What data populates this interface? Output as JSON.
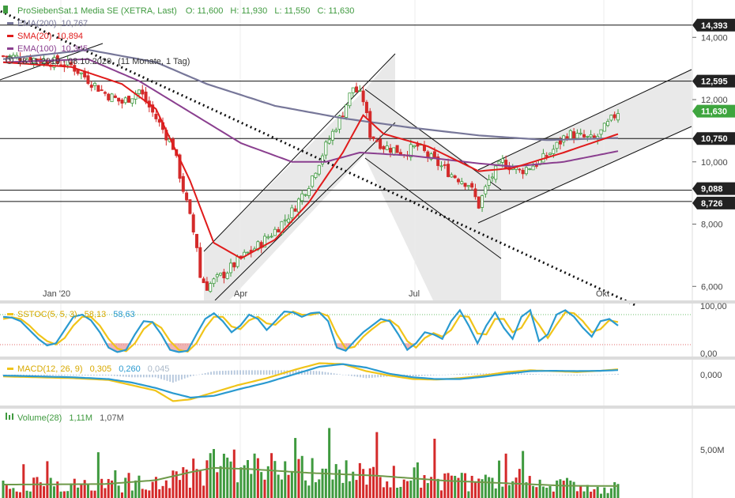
{
  "colors": {
    "up": "#3f9a3f",
    "down": "#d42a2a",
    "ema200": "#777799",
    "sma20": "#e01b1b",
    "ema100": "#8a3f8f",
    "stoch_k": "#2a9ad0",
    "stoch_d": "#f0c419",
    "tag_bg": "#222222",
    "last_tag": "#3ea53e",
    "volume_ma": "#6e9a4a",
    "channel": "#e9e9e9"
  },
  "header": {
    "symbol": "ProSiebenSat.1 Media SE (XETRA, Last)",
    "open": "O: 11,600",
    "high": "H: 11,930",
    "low": "L: 11,550",
    "close": "C: 11,630"
  },
  "legend": [
    {
      "key": "ema200",
      "label": "EMA(200)",
      "value": "10,767"
    },
    {
      "key": "sma20",
      "label": "SMA(20)",
      "value": "10,894"
    },
    {
      "key": "ema100",
      "label": "EMA(100)",
      "value": "10,345"
    }
  ],
  "period": {
    "range": "28.11.2019 - 08.10.2020",
    "length": "(11 Monate, 1 Tag)"
  },
  "chart_data": [
    {
      "type": "candlestick",
      "x_labels": [
        "Jan '20",
        "Apr",
        "Jul",
        "Okt"
      ],
      "y_ticks": [
        "14,000",
        "12,000",
        "10,000",
        "8,000",
        "6,000"
      ],
      "y_tick_values": [
        14,
        12,
        10,
        8,
        6
      ],
      "ylim": [
        5.55,
        15.2
      ],
      "price_tags": [
        {
          "label": "14,393",
          "value": 14.393
        },
        {
          "label": "12,595",
          "value": 12.595
        },
        {
          "label": "11,630",
          "value": 11.63,
          "last": true
        },
        {
          "label": "10,750",
          "value": 10.75
        },
        {
          "label": "9,088",
          "value": 9.088
        },
        {
          "label": "8,726",
          "value": 8.726
        }
      ],
      "horizontal_lines": [
        14.393,
        12.595,
        10.75,
        9.088,
        8.726
      ],
      "close_anchors": [
        [
          0,
          13.4
        ],
        [
          10,
          13.3
        ],
        [
          20,
          13.1
        ],
        [
          30,
          12.2
        ],
        [
          35,
          11.9
        ],
        [
          40,
          12.3
        ],
        [
          45,
          11.4
        ],
        [
          50,
          10.5
        ],
        [
          55,
          8.2
        ],
        [
          57,
          7.3
        ],
        [
          58,
          6.3
        ],
        [
          60,
          6.0
        ],
        [
          65,
          6.4
        ],
        [
          70,
          6.9
        ],
        [
          75,
          7.3
        ],
        [
          80,
          7.8
        ],
        [
          85,
          8.4
        ],
        [
          90,
          9.3
        ],
        [
          95,
          10.5
        ],
        [
          100,
          11.6
        ],
        [
          103,
          12.4
        ],
        [
          106,
          12.0
        ],
        [
          108,
          10.9
        ],
        [
          112,
          10.5
        ],
        [
          118,
          10.3
        ],
        [
          122,
          10.5
        ],
        [
          126,
          10.1
        ],
        [
          132,
          9.6
        ],
        [
          137,
          9.3
        ],
        [
          140,
          8.6
        ],
        [
          143,
          9.4
        ],
        [
          147,
          10.0
        ],
        [
          152,
          9.7
        ],
        [
          158,
          10.0
        ],
        [
          162,
          10.4
        ],
        [
          166,
          10.9
        ],
        [
          170,
          10.8
        ],
        [
          174,
          10.7
        ],
        [
          178,
          11.2
        ],
        [
          181,
          11.63
        ]
      ],
      "sma20_anchors": [
        [
          0,
          13.2
        ],
        [
          20,
          13.05
        ],
        [
          35,
          12.5
        ],
        [
          45,
          11.7
        ],
        [
          55,
          9.4
        ],
        [
          62,
          7.4
        ],
        [
          70,
          6.9
        ],
        [
          80,
          7.5
        ],
        [
          90,
          8.7
        ],
        [
          100,
          10.3
        ],
        [
          106,
          11.5
        ],
        [
          112,
          10.9
        ],
        [
          125,
          10.5
        ],
        [
          140,
          9.7
        ],
        [
          150,
          9.8
        ],
        [
          165,
          10.3
        ],
        [
          181,
          10.894
        ]
      ],
      "ema200_anchors": [
        [
          0,
          13.3
        ],
        [
          25,
          13.6
        ],
        [
          45,
          13.2
        ],
        [
          60,
          12.5
        ],
        [
          80,
          11.8
        ],
        [
          100,
          11.4
        ],
        [
          120,
          11.1
        ],
        [
          140,
          10.85
        ],
        [
          160,
          10.7
        ],
        [
          181,
          10.767
        ]
      ],
      "ema100_anchors": [
        [
          0,
          13.2
        ],
        [
          25,
          13.3
        ],
        [
          40,
          12.6
        ],
        [
          55,
          11.6
        ],
        [
          70,
          10.6
        ],
        [
          85,
          10.0
        ],
        [
          95,
          10.0
        ],
        [
          105,
          10.3
        ],
        [
          120,
          10.2
        ],
        [
          140,
          9.95
        ],
        [
          150,
          9.85
        ],
        [
          165,
          10.0
        ],
        [
          181,
          10.345
        ]
      ],
      "trendline": [
        [
          -2,
          14.9
        ],
        [
          186,
          5.4
        ]
      ]
    },
    {
      "type": "line",
      "name": "SSTOC(5, 5, 3)",
      "values_text": [
        "58,13",
        "58,63"
      ],
      "y_ticks": [
        "100,00",
        "0,00"
      ],
      "ylim": [
        -10,
        110
      ],
      "k_anchors": [
        [
          0,
          80
        ],
        [
          3,
          78
        ],
        [
          6,
          70
        ],
        [
          9,
          50
        ],
        [
          12,
          30
        ],
        [
          15,
          15
        ],
        [
          18,
          20
        ],
        [
          21,
          50
        ],
        [
          24,
          80
        ],
        [
          27,
          85
        ],
        [
          30,
          72
        ],
        [
          33,
          45
        ],
        [
          36,
          10
        ],
        [
          39,
          0
        ],
        [
          42,
          5
        ],
        [
          45,
          40
        ],
        [
          48,
          70
        ],
        [
          51,
          68
        ],
        [
          54,
          40
        ],
        [
          57,
          5
        ],
        [
          60,
          0
        ],
        [
          63,
          3
        ],
        [
          66,
          40
        ],
        [
          69,
          75
        ],
        [
          72,
          88
        ],
        [
          75,
          70
        ],
        [
          78,
          45
        ],
        [
          81,
          60
        ],
        [
          84,
          85
        ],
        [
          87,
          75
        ],
        [
          90,
          50
        ],
        [
          93,
          70
        ],
        [
          96,
          92
        ],
        [
          99,
          90
        ],
        [
          102,
          80
        ],
        [
          105,
          88
        ],
        [
          108,
          90
        ],
        [
          111,
          70
        ],
        [
          114,
          10
        ],
        [
          117,
          3
        ],
        [
          120,
          25
        ],
        [
          123,
          45
        ],
        [
          126,
          60
        ],
        [
          129,
          75
        ],
        [
          132,
          70
        ],
        [
          135,
          40
        ],
        [
          138,
          5
        ],
        [
          141,
          20
        ],
        [
          144,
          45
        ],
        [
          147,
          40
        ],
        [
          150,
          30
        ],
        [
          153,
          70
        ],
        [
          156,
          95
        ],
        [
          159,
          60
        ],
        [
          162,
          20
        ],
        [
          165,
          60
        ],
        [
          168,
          90
        ],
        [
          171,
          55
        ],
        [
          174,
          30
        ],
        [
          177,
          80
        ],
        [
          180,
          95
        ],
        [
          183,
          25
        ],
        [
          186,
          40
        ],
        [
          189,
          85
        ],
        [
          192,
          95
        ],
        [
          195,
          80
        ],
        [
          198,
          55
        ],
        [
          201,
          35
        ],
        [
          204,
          70
        ],
        [
          207,
          75
        ],
        [
          210,
          60
        ]
      ],
      "d_anchors": [
        [
          0,
          75
        ],
        [
          3,
          79
        ],
        [
          6,
          75
        ],
        [
          9,
          60
        ],
        [
          12,
          40
        ],
        [
          15,
          25
        ],
        [
          18,
          17
        ],
        [
          21,
          32
        ],
        [
          24,
          60
        ],
        [
          27,
          80
        ],
        [
          30,
          80
        ],
        [
          33,
          60
        ],
        [
          36,
          30
        ],
        [
          39,
          8
        ],
        [
          42,
          2
        ],
        [
          45,
          20
        ],
        [
          48,
          52
        ],
        [
          51,
          68
        ],
        [
          54,
          55
        ],
        [
          57,
          25
        ],
        [
          60,
          5
        ],
        [
          63,
          1
        ],
        [
          66,
          20
        ],
        [
          69,
          55
        ],
        [
          72,
          80
        ],
        [
          75,
          80
        ],
        [
          78,
          58
        ],
        [
          81,
          52
        ],
        [
          84,
          72
        ],
        [
          87,
          80
        ],
        [
          90,
          65
        ],
        [
          93,
          62
        ],
        [
          96,
          80
        ],
        [
          99,
          92
        ],
        [
          102,
          85
        ],
        [
          105,
          84
        ],
        [
          108,
          89
        ],
        [
          111,
          82
        ],
        [
          114,
          40
        ],
        [
          117,
          8
        ],
        [
          120,
          12
        ],
        [
          123,
          35
        ],
        [
          126,
          52
        ],
        [
          129,
          67
        ],
        [
          132,
          73
        ],
        [
          135,
          58
        ],
        [
          138,
          25
        ],
        [
          141,
          10
        ],
        [
          144,
          32
        ],
        [
          147,
          43
        ],
        [
          150,
          35
        ],
        [
          153,
          50
        ],
        [
          156,
          82
        ],
        [
          159,
          80
        ],
        [
          162,
          42
        ],
        [
          165,
          40
        ],
        [
          168,
          75
        ],
        [
          171,
          75
        ],
        [
          174,
          45
        ],
        [
          177,
          55
        ],
        [
          180,
          88
        ],
        [
          183,
          62
        ],
        [
          186,
          32
        ],
        [
          189,
          62
        ],
        [
          192,
          90
        ],
        [
          195,
          88
        ],
        [
          198,
          70
        ],
        [
          201,
          45
        ],
        [
          204,
          52
        ],
        [
          207,
          72
        ],
        [
          210,
          68
        ]
      ]
    },
    {
      "type": "line",
      "name": "MACD(12, 26, 9)",
      "values_text": [
        "0,305",
        "0,260",
        "0,045"
      ],
      "y_ticks": [
        "0,000"
      ],
      "ylim": [
        -1.75,
        0.85
      ],
      "macd_anchors": [
        [
          0,
          -0.1
        ],
        [
          12,
          -0.15
        ],
        [
          24,
          -0.2
        ],
        [
          36,
          -0.3
        ],
        [
          44,
          -0.6
        ],
        [
          52,
          -0.9
        ],
        [
          58,
          -1.5
        ],
        [
          64,
          -1.4
        ],
        [
          72,
          -1.0
        ],
        [
          80,
          -0.6
        ],
        [
          90,
          -0.2
        ],
        [
          100,
          0.3
        ],
        [
          108,
          0.65
        ],
        [
          116,
          0.6
        ],
        [
          124,
          0.2
        ],
        [
          132,
          -0.05
        ],
        [
          140,
          -0.25
        ],
        [
          148,
          -0.28
        ],
        [
          156,
          -0.2
        ],
        [
          164,
          -0.05
        ],
        [
          172,
          0.15
        ],
        [
          180,
          0.25
        ],
        [
          188,
          0.2
        ],
        [
          196,
          0.15
        ],
        [
          204,
          0.22
        ],
        [
          210,
          0.305
        ]
      ],
      "signal_anchors": [
        [
          0,
          -0.05
        ],
        [
          12,
          -0.1
        ],
        [
          24,
          -0.15
        ],
        [
          36,
          -0.25
        ],
        [
          44,
          -0.45
        ],
        [
          52,
          -0.75
        ],
        [
          58,
          -1.05
        ],
        [
          64,
          -1.3
        ],
        [
          72,
          -1.2
        ],
        [
          80,
          -0.85
        ],
        [
          90,
          -0.45
        ],
        [
          100,
          0.05
        ],
        [
          108,
          0.45
        ],
        [
          116,
          0.6
        ],
        [
          124,
          0.4
        ],
        [
          132,
          0.05
        ],
        [
          140,
          -0.15
        ],
        [
          148,
          -0.25
        ],
        [
          156,
          -0.25
        ],
        [
          164,
          -0.12
        ],
        [
          172,
          0.05
        ],
        [
          180,
          0.2
        ],
        [
          188,
          0.22
        ],
        [
          196,
          0.2
        ],
        [
          204,
          0.22
        ],
        [
          210,
          0.26
        ]
      ]
    },
    {
      "type": "bar",
      "name": "Volume(28)",
      "values_text": [
        "1,11M",
        "1,07M"
      ],
      "y_ticks": [
        "5,00M"
      ],
      "ylim": [
        0,
        8000000
      ],
      "volume_ma_anchors": [
        [
          0,
          1.2
        ],
        [
          30,
          1.25
        ],
        [
          45,
          1.6
        ],
        [
          55,
          2.3
        ],
        [
          62,
          2.7
        ],
        [
          72,
          2.6
        ],
        [
          90,
          2.25
        ],
        [
          110,
          2.0
        ],
        [
          130,
          1.55
        ],
        [
          150,
          1.3
        ],
        [
          165,
          1.1
        ],
        [
          181,
          1.07
        ]
      ]
    }
  ]
}
